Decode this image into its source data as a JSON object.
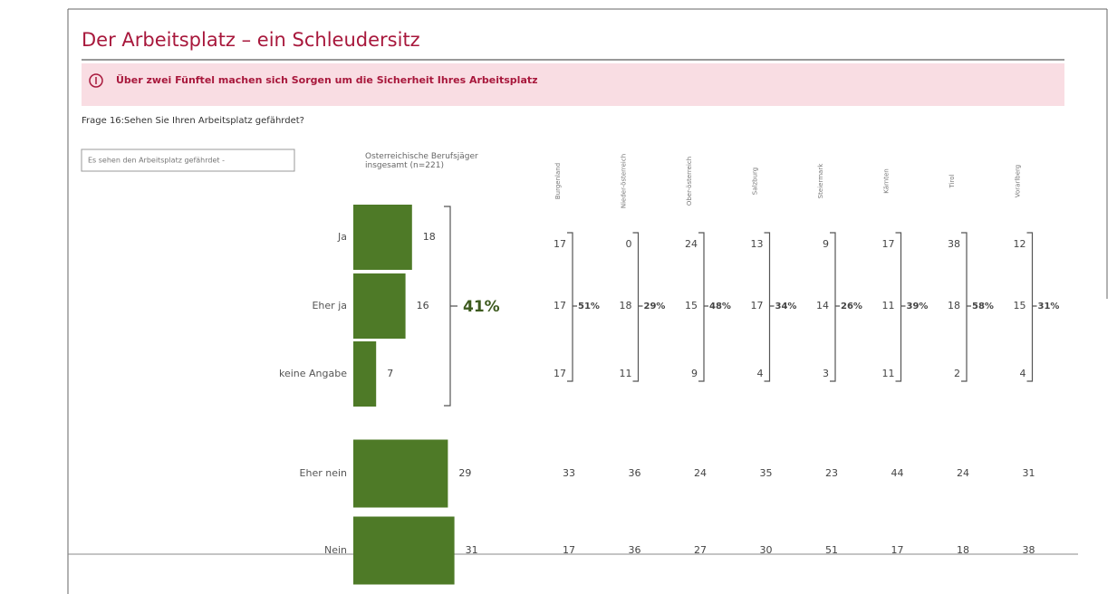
{
  "header": {
    "title": "Der Arbeitsplatz – ein Schleudersitz",
    "banner": "Über zwei Fünftel machen sich Sorgen um die Sicherheit Ihres Arbeitsplatz",
    "question": "Frage 16:Sehen Sie Ihren Arbeitsplatz gefährdet?",
    "filter": "Es sehen den Arbeitsplatz gefährdet -"
  },
  "chart_data": {
    "type": "bar",
    "orientation": "horizontal",
    "categories": [
      "Ja",
      "Eher ja",
      "keine Angabe",
      "Eher nein",
      "Nein"
    ],
    "series": [
      {
        "name": "Österreichische Berufsjäger insgesamt (n=221)",
        "color": "#4e7a27",
        "values": [
          18,
          16,
          7,
          29,
          31
        ]
      }
    ],
    "group_label": "41%"
  },
  "regions": [
    {
      "name": "Burgenland",
      "values": [
        "17",
        "17",
        "17",
        "33",
        "17"
      ],
      "group_label": "51%"
    },
    {
      "name": "Nieder-österreich",
      "values": [
        "0",
        "18",
        "11",
        "36",
        "36"
      ],
      "group_label": "29%"
    },
    {
      "name": "Ober-österreich",
      "values": [
        "24",
        "15",
        "9",
        "24",
        "27"
      ],
      "group_label": "48%"
    },
    {
      "name": "Salzburg",
      "values": [
        "13",
        "17",
        "4",
        "35",
        "30"
      ],
      "group_label": "34%"
    },
    {
      "name": "Steiermark",
      "values": [
        "9",
        "14",
        "3",
        "23",
        "51"
      ],
      "group_label": "26%"
    },
    {
      "name": "Kärnten",
      "values": [
        "17",
        "11",
        "11",
        "44",
        "17"
      ],
      "group_label": "39%"
    },
    {
      "name": "Tirol",
      "values": [
        "38",
        "18",
        "2",
        "24",
        "18"
      ],
      "group_label": "58%"
    },
    {
      "name": "Vorarlberg",
      "values": [
        "12",
        "15",
        "4",
        "31",
        "38"
      ],
      "group_label": "31%"
    }
  ]
}
